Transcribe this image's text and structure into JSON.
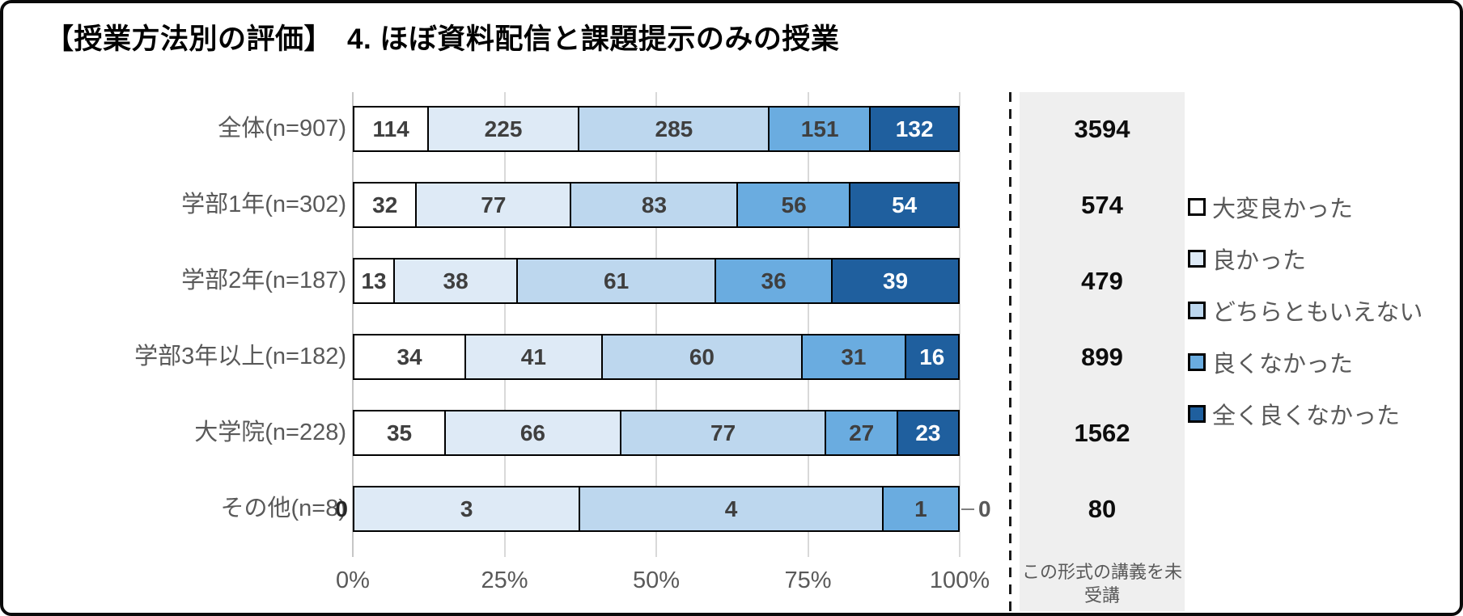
{
  "title": "【授業方法別の評価】　4. ほぼ資料配信と課題提示のみの授業",
  "chart_data": {
    "type": "bar",
    "stacked": true,
    "orientation": "horizontal",
    "percent_axis": true,
    "title": "【授業方法別の評価】　4. ほぼ資料配信と課題提示のみの授業",
    "categories": [
      "全体(n=907)",
      "学部1年(n=302)",
      "学部2年(n=187)",
      "学部3年以上(n=182)",
      "大学院(n=228)",
      "その他(n=8)"
    ],
    "series": [
      {
        "name": "大変良かった",
        "color": "#ffffff",
        "label_color": "#3f3f3f",
        "values": [
          114,
          32,
          13,
          34,
          35,
          0
        ]
      },
      {
        "name": "良かった",
        "color": "#deeaf6",
        "label_color": "#3f3f3f",
        "values": [
          225,
          77,
          38,
          41,
          66,
          3
        ]
      },
      {
        "name": "どちらともいえない",
        "color": "#bdd7ee",
        "label_color": "#3f3f3f",
        "values": [
          285,
          83,
          61,
          60,
          77,
          4
        ]
      },
      {
        "name": "良くなかった",
        "color": "#6aace0",
        "label_color": "#3f3f3f",
        "values": [
          151,
          56,
          36,
          31,
          27,
          1
        ]
      },
      {
        "name": "全く良くなかった",
        "color": "#1f5f9e",
        "label_color": "#ffffff",
        "values": [
          132,
          54,
          39,
          16,
          23,
          0
        ]
      }
    ],
    "x_axis": {
      "ticks": [
        "0%",
        "25%",
        "50%",
        "75%",
        "100%"
      ],
      "range": [
        0,
        100
      ],
      "grid": true
    },
    "legend": {
      "position": "right"
    },
    "unenrolled_column": {
      "note": "この形式の講義を未受講",
      "values": [
        3594,
        574,
        479,
        899,
        1562,
        80
      ]
    }
  }
}
